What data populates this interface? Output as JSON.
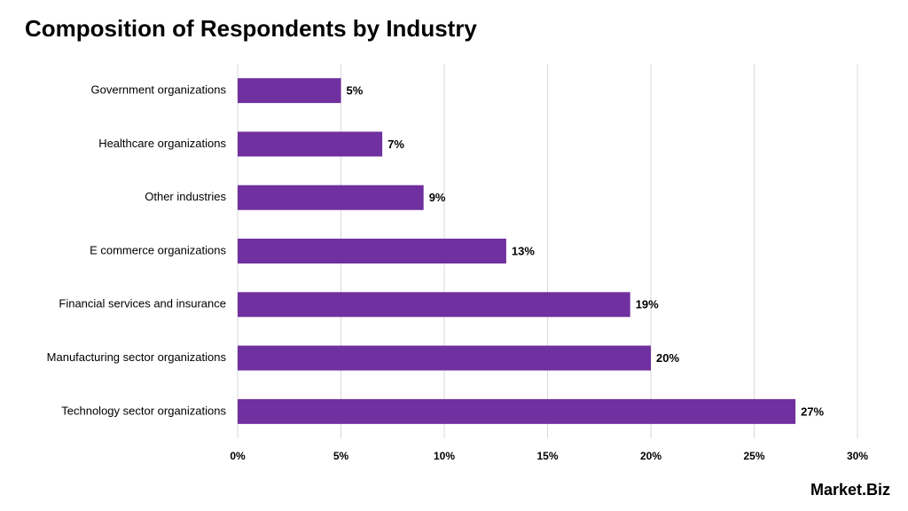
{
  "chart_data": {
    "type": "bar",
    "orientation": "horizontal",
    "title": "Composition of Respondents by Industry",
    "categories": [
      "Government organizations",
      "Healthcare organizations",
      "Other industries",
      "E commerce organizations",
      "Financial services and insurance",
      "Manufacturing sector organizations",
      "Technology sector organizations"
    ],
    "values": [
      5,
      7,
      9,
      13,
      19,
      20,
      27
    ],
    "value_labels": [
      "5%",
      "7%",
      "9%",
      "13%",
      "19%",
      "20%",
      "27%"
    ],
    "color": "#7030a0",
    "xlim": [
      0,
      30
    ],
    "xticks": [
      {
        "value": 0,
        "label": "0%"
      },
      {
        "value": 5,
        "label": "5%"
      },
      {
        "value": 10,
        "label": "10%"
      },
      {
        "value": 15,
        "label": "15%"
      },
      {
        "value": 20,
        "label": "20%"
      },
      {
        "value": 25,
        "label": "25%"
      },
      {
        "value": 30,
        "label": "30%"
      }
    ],
    "grid": true
  },
  "logo": "Market.Biz"
}
